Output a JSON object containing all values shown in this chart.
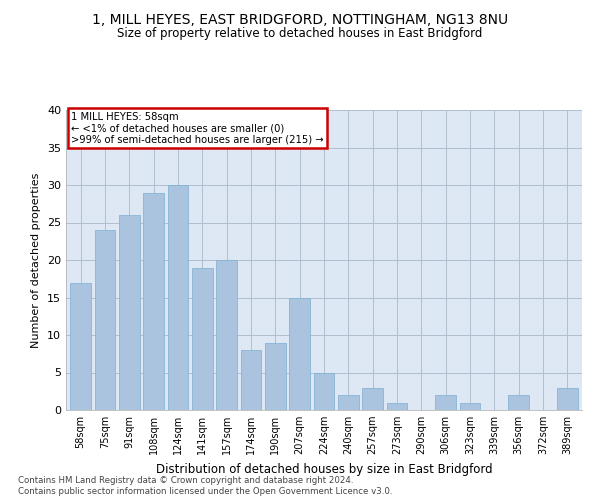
{
  "title1": "1, MILL HEYES, EAST BRIDGFORD, NOTTINGHAM, NG13 8NU",
  "title2": "Size of property relative to detached houses in East Bridgford",
  "xlabel": "Distribution of detached houses by size in East Bridgford",
  "ylabel": "Number of detached properties",
  "categories": [
    "58sqm",
    "75sqm",
    "91sqm",
    "108sqm",
    "124sqm",
    "141sqm",
    "157sqm",
    "174sqm",
    "190sqm",
    "207sqm",
    "224sqm",
    "240sqm",
    "257sqm",
    "273sqm",
    "290sqm",
    "306sqm",
    "323sqm",
    "339sqm",
    "356sqm",
    "372sqm",
    "389sqm"
  ],
  "values": [
    17,
    24,
    26,
    29,
    30,
    19,
    20,
    8,
    9,
    15,
    5,
    2,
    3,
    1,
    0,
    2,
    1,
    0,
    2,
    0,
    3
  ],
  "bar_color": "#aac4e0",
  "bar_edge_color": "#7aafd0",
  "annotation_title": "1 MILL HEYES: 58sqm",
  "annotation_line1": "← <1% of detached houses are smaller (0)",
  "annotation_line2": ">99% of semi-detached houses are larger (215) →",
  "annotation_box_color": "#cc0000",
  "background_color": "#dde8f4",
  "ylim": [
    0,
    40
  ],
  "yticks": [
    0,
    5,
    10,
    15,
    20,
    25,
    30,
    35,
    40
  ],
  "footer1": "Contains HM Land Registry data © Crown copyright and database right 2024.",
  "footer2": "Contains public sector information licensed under the Open Government Licence v3.0."
}
